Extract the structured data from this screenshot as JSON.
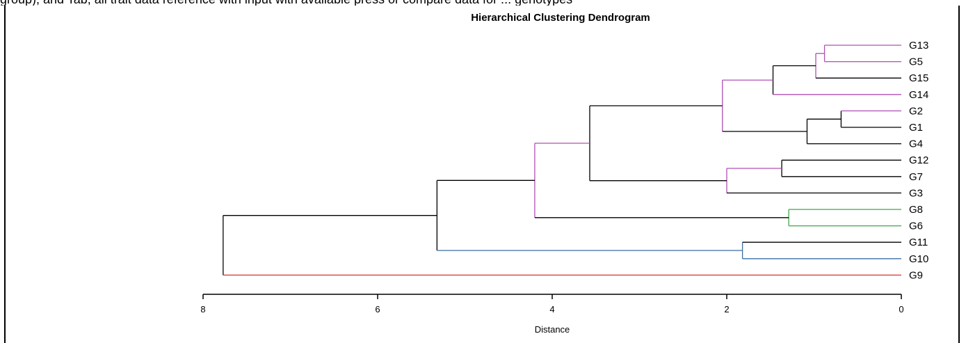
{
  "caption_text": "group), and Tab, all trait data reference with input with available press or compare data for ... genotypes",
  "chart_data": {
    "type": "dendrogram",
    "title": "Hierarchical Clustering Dendrogram",
    "xlabel": "Distance",
    "x_axis": {
      "reversed": true,
      "range": [
        8,
        0
      ],
      "ticks": [
        8,
        6,
        4,
        2,
        0
      ]
    },
    "leaves": [
      "G13",
      "G5",
      "G15",
      "G14",
      "G2",
      "G1",
      "G4",
      "G12",
      "G7",
      "G3",
      "G8",
      "G6",
      "G11",
      "G10",
      "G9"
    ],
    "colors": {
      "purple": "#b04fb4",
      "green": "#3fa84a",
      "blue": "#3a6ea5",
      "red": "#d9342b",
      "black": "#000000"
    },
    "merges": [
      {
        "id": "m1",
        "children": [
          "G13",
          "G5"
        ],
        "height": 0.88,
        "color": "purple"
      },
      {
        "id": "m2",
        "children": [
          "m1",
          "G15"
        ],
        "height": 0.98,
        "color": "purple"
      },
      {
        "id": "m3",
        "children": [
          "m2",
          "G14"
        ],
        "height": 1.47,
        "color": "black"
      },
      {
        "id": "m4",
        "children": [
          "G2",
          "G1"
        ],
        "height": 0.69,
        "color": "black"
      },
      {
        "id": "m5",
        "children": [
          "m4",
          "G4"
        ],
        "height": 1.08,
        "color": "black"
      },
      {
        "id": "m6",
        "children": [
          "m3",
          "m5"
        ],
        "height": 2.05,
        "color": "purple"
      },
      {
        "id": "m7",
        "children": [
          "G12",
          "G7"
        ],
        "height": 1.37,
        "color": "black"
      },
      {
        "id": "m8",
        "children": [
          "m7",
          "G3"
        ],
        "height": 2.0,
        "color": "purple"
      },
      {
        "id": "m9",
        "children": [
          "m6",
          "m8"
        ],
        "height": 3.57,
        "color": "black"
      },
      {
        "id": "m10",
        "children": [
          "G8",
          "G6"
        ],
        "height": 1.29,
        "color": "green"
      },
      {
        "id": "m11",
        "children": [
          "m9",
          "m10"
        ],
        "height": 4.2,
        "color": "purple"
      },
      {
        "id": "m12",
        "children": [
          "G11",
          "G10"
        ],
        "height": 1.82,
        "color": "blue"
      },
      {
        "id": "m13",
        "children": [
          "m11",
          "m12"
        ],
        "height": 5.32,
        "color": "black"
      },
      {
        "id": "m14",
        "children": [
          "m13",
          "G9"
        ],
        "height": 7.77,
        "color": "black"
      }
    ],
    "branch_colors": {
      "G13": "purple",
      "G5": "purple",
      "G15": "black",
      "G14": "purple",
      "G2": "purple",
      "G1": "black",
      "G4": "black",
      "G12": "black",
      "G7": "black",
      "G3": "black",
      "G8": "green",
      "G6": "green",
      "G11": "black",
      "G10": "blue",
      "G9": "red",
      "m1": "purple",
      "m2": "black",
      "m3": "purple",
      "m4": "black",
      "m5": "black",
      "m6": "black",
      "m7": "purple",
      "m8": "black",
      "m9": "purple",
      "m10": "black",
      "m11": "black",
      "m12": "blue",
      "m13": "black",
      "m14": "black"
    },
    "grid": false,
    "legend": "none"
  }
}
